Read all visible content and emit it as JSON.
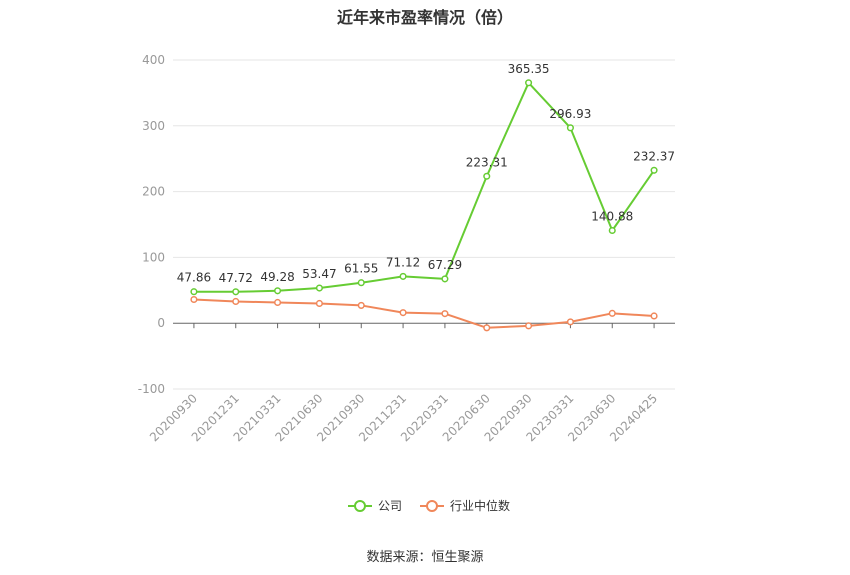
{
  "title": "近年来市盈率情况（倍）",
  "source": "数据来源：恒生聚源",
  "chart_data": {
    "type": "line",
    "title": "近年来市盈率情况（倍）",
    "xlabel": "",
    "ylabel": "",
    "categories": [
      "20200930",
      "20201231",
      "20210331",
      "20210630",
      "20210930",
      "20211231",
      "20220331",
      "20220630",
      "20220930",
      "20230331",
      "20230630",
      "20240425"
    ],
    "ylim": [
      -100,
      400
    ],
    "yticks": [
      -100,
      0,
      100,
      200,
      300,
      400
    ],
    "grid": true,
    "legend_position": "bottom",
    "series": [
      {
        "name": "公司",
        "color": "#66cc33",
        "values": [
          47.86,
          47.72,
          49.28,
          53.47,
          61.55,
          71.12,
          67.29,
          223.31,
          365.35,
          296.93,
          140.88,
          232.37
        ],
        "labels": [
          "47.86",
          "47.72",
          "49.28",
          "53.47",
          "61.55",
          "71.12",
          "67.29",
          "223.31",
          "365.35",
          "296.93",
          "140.88",
          "232.37"
        ]
      },
      {
        "name": "行业中位数",
        "color": "#f0875a",
        "values": [
          36.0,
          33.0,
          31.5,
          30.0,
          27.0,
          16.0,
          14.5,
          -7.0,
          -4.0,
          2.0,
          15.0,
          11.0
        ]
      }
    ]
  }
}
